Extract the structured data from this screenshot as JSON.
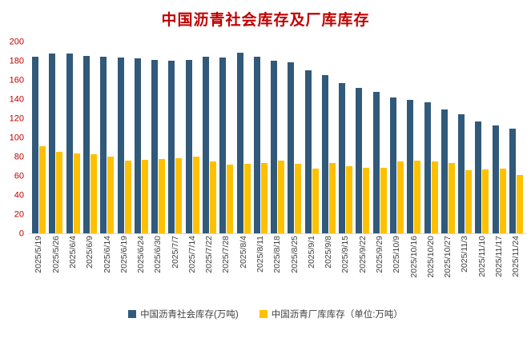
{
  "title": "中国沥青社会库存及厂库库存",
  "colors": {
    "title": "#c00000",
    "y_axis_label": "#c00000",
    "x_axis_label": "#404040",
    "series_social": "#31597a",
    "series_factory": "#ffc000",
    "axis_line": "#d9d9d9"
  },
  "chart_data": {
    "type": "bar",
    "title": "中国沥青社会库存及厂库库存",
    "categories": [
      "2025/5/19",
      "2025/5/26",
      "2025/6/4",
      "2025/6/9",
      "2025/6/14",
      "2025/6/19",
      "2025/6/24",
      "2025/6/30",
      "2025/7/7",
      "2025/7/14",
      "2025/7/22",
      "2025/7/28",
      "2025/8/4",
      "2025/8/11",
      "2025/8/18",
      "2025/8/25",
      "2025/9/1",
      "2025/9/8",
      "2025/9/15",
      "2025/9/22",
      "2025/9/29",
      "2025/10/9",
      "2025/10/16",
      "2025/10/20",
      "2025/10/27",
      "2025/11/3",
      "2025/11/10",
      "2025/11/17",
      "2025/11/24"
    ],
    "series": [
      {
        "name": "中国沥青社会库存(万吨)",
        "color": "#31597a",
        "values": [
          185,
          188,
          188,
          186,
          185,
          184,
          183,
          182,
          181,
          182,
          185,
          184,
          189,
          185,
          181,
          179,
          171,
          166,
          157,
          152,
          148,
          142,
          140,
          137,
          130,
          125,
          117,
          113,
          110
        ]
      },
      {
        "name": "中国沥青厂库库存（单位:万吨）",
        "color": "#ffc000",
        "values": [
          91,
          85,
          84,
          83,
          80,
          76,
          77,
          78,
          79,
          80,
          75,
          72,
          73,
          74,
          76,
          73,
          68,
          74,
          70,
          69,
          69,
          75,
          76,
          75,
          74,
          66,
          67,
          68,
          61
        ]
      }
    ],
    "ylim": [
      0,
      200
    ],
    "ytick_step": 20,
    "grid": false,
    "legend_position": "bottom"
  }
}
